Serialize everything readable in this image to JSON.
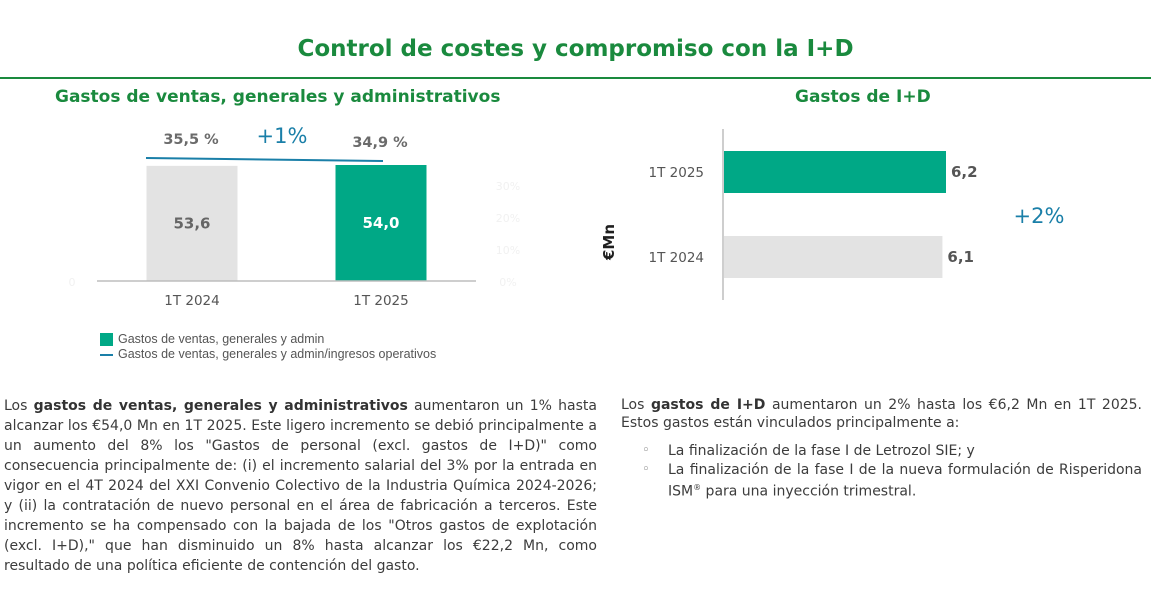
{
  "page_title": "Control de costes y compromiso con la I+D",
  "colors": {
    "brand_green": "#1a8a3e",
    "bar_green": "#00a886",
    "bar_grey": "#e3e3e3",
    "line_blue": "#1a7fa8"
  },
  "chart_data": [
    {
      "type": "bar",
      "title": "Gastos de ventas, generales y administrativos",
      "categories": [
        "1T 2024",
        "1T 2025"
      ],
      "series": [
        {
          "name": "Gastos de ventas, generales y admin",
          "values": [
            53.6,
            54.0
          ],
          "labels": [
            "53,6",
            "54,0"
          ]
        },
        {
          "name": "Gastos de ventas, generales y admin/ingresos operativos",
          "type": "line",
          "values": [
            35.5,
            34.9
          ],
          "labels": [
            "35,5 %",
            "34,9 %"
          ]
        }
      ],
      "annotation": "+1%",
      "ylim": [
        0,
        60
      ],
      "faint_tick_labels": {
        "left": "0",
        "right": [
          "0%",
          "10%",
          "20%",
          "30%"
        ]
      },
      "legend": "bottom-left"
    },
    {
      "type": "bar",
      "orientation": "horizontal",
      "title": "Gastos de I+D",
      "categories": [
        "1T 2025",
        "1T 2024"
      ],
      "values": [
        6.2,
        6.1
      ],
      "labels": [
        "6,2",
        "6,1"
      ],
      "ylabel": "€Mn",
      "annotation": "+2%",
      "xlim": [
        0,
        8
      ]
    }
  ],
  "text": {
    "left_paragraph_html": "Los <b>gastos de ventas, generales y administrativos</b> aumentaron un 1% hasta alcanzar los €54,0 Mn en 1T 2025. Este ligero incremento se debió principalmente a un aumento del 8% los \"Gastos de personal (excl. gastos de I+D)\" como consecuencia principalmente de: (i) el incremento salarial del 3% por la entrada en vigor en el 4T 2024 del XXI Convenio Colectivo de la Industria Química 2024-2026; y (ii) la contratación de nuevo personal en el área de fabricación a terceros. Este incremento se ha compensado con la bajada de los \"Otros gastos de explotación (excl. I+D),\" que han disminuido un 8% hasta alcanzar los €22,2 Mn, como resultado de una política eficiente de contención del gasto.",
    "right_paragraph_html": "Los <b>gastos de I+D</b> aumentaron un 2% hasta los €6,2 Mn en 1T 2025. Estos gastos están vinculados principalmente a:",
    "bullets_html": [
      "La finalización de la fase I de Letrozol SIE; y",
      "La finalización de la fase I de la nueva formulación de Risperidona ISM<sup style=\"font-size:8px\">®</sup> para una inyección trimestral."
    ]
  }
}
